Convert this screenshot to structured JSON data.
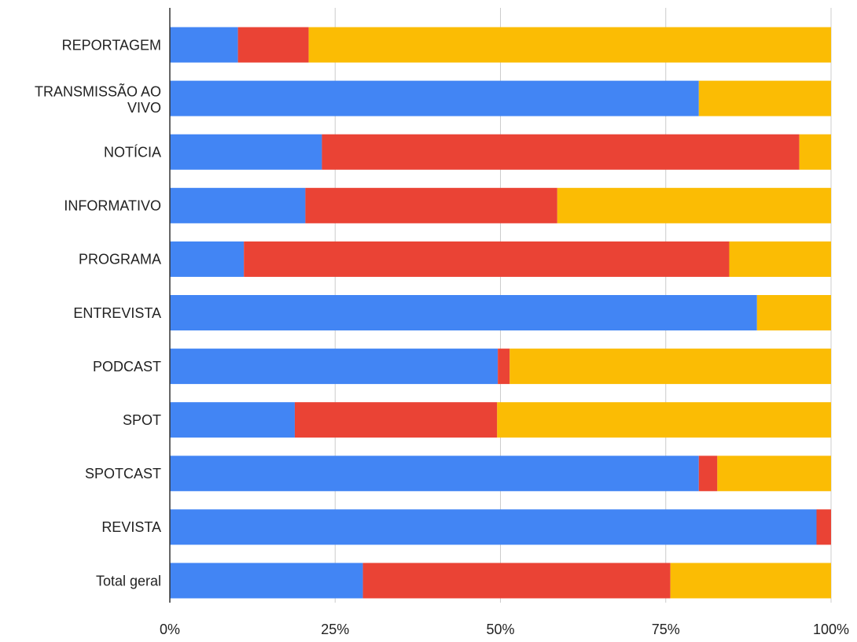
{
  "chart_data": {
    "type": "bar",
    "orientation": "horizontal",
    "stacking": "percent",
    "title": "",
    "xlabel": "",
    "ylabel": "",
    "xlim": [
      0,
      100
    ],
    "grid": true,
    "legend": "none",
    "categories": [
      "REPORTAGEM",
      "TRANSMISSÃO AO VIVO",
      "NOTÍCIA",
      "INFORMATIVO",
      "PROGRAMA",
      "ENTREVISTA",
      "PODCAST",
      "SPOT",
      "SPOTCAST",
      "REVISTA",
      "Total geral"
    ],
    "x_ticks": [
      "0%",
      "25%",
      "50%",
      "75%",
      "100%"
    ],
    "series": [
      {
        "color": "#4285f4",
        "values": [
          10.3,
          80,
          23,
          20.5,
          11.2,
          88.8,
          49.6,
          18.9,
          80,
          97.8,
          29.2
        ]
      },
      {
        "color": "#ea4335",
        "values": [
          10.7,
          0,
          72.2,
          38.1,
          73.4,
          0,
          1.8,
          30.6,
          2.8,
          2.2,
          46.5
        ]
      },
      {
        "color": "#fbbc04",
        "values": [
          79,
          20,
          4.8,
          41.4,
          15.4,
          11.2,
          48.6,
          50.5,
          17.2,
          0,
          24.3
        ]
      }
    ]
  }
}
